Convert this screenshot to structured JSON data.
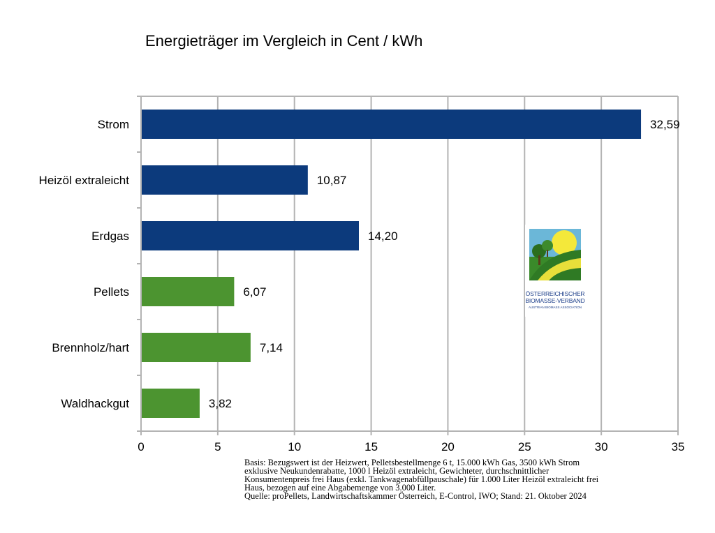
{
  "chart_data": {
    "type": "bar",
    "orientation": "horizontal",
    "title": "Energieträger im Vergleich in Cent / kWh",
    "categories": [
      "Strom",
      "Heizöl extraleicht",
      "Erdgas",
      "Pellets",
      "Brennholz/hart",
      "Waldhackgut"
    ],
    "values": [
      32.59,
      10.87,
      14.2,
      6.07,
      7.14,
      3.82
    ],
    "value_labels": [
      "32,59",
      "10,87",
      "14,20",
      "6,07",
      "7,14",
      "3,82"
    ],
    "bar_colors": [
      "#0c3a7c",
      "#0c3a7c",
      "#0c3a7c",
      "#4c9430",
      "#4c9430",
      "#4c9430"
    ],
    "xlim": [
      0,
      35
    ],
    "x_ticks": [
      0,
      5,
      10,
      15,
      20,
      25,
      30,
      35
    ],
    "grid": true
  },
  "footnote": {
    "lines": [
      "Basis: Bezugswert ist der Heizwert, Pelletsbestellmenge 6 t, 15.000 kWh Gas, 3500 kWh Strom",
      "exklusive Neukundenrabatte, 1000 l Heizöl extraleicht, Gewichteter, durchschnittlicher",
      "Konsumentenpreis frei Haus (exkl. Tankwagenabfüllpauschale) für 1.000 Liter Heizöl extraleicht frei",
      "Haus, bezogen auf eine Abgabemenge von 3.000 Liter.",
      "Quelle: proPellets, Landwirtschaftskammer Österreich, E-Control, IWO; Stand: 21. Oktober 2024"
    ]
  },
  "logo": {
    "line1": "Österreichischer",
    "line2": "Biomasse-Verband",
    "line3": "Austrian Biomass Association"
  }
}
